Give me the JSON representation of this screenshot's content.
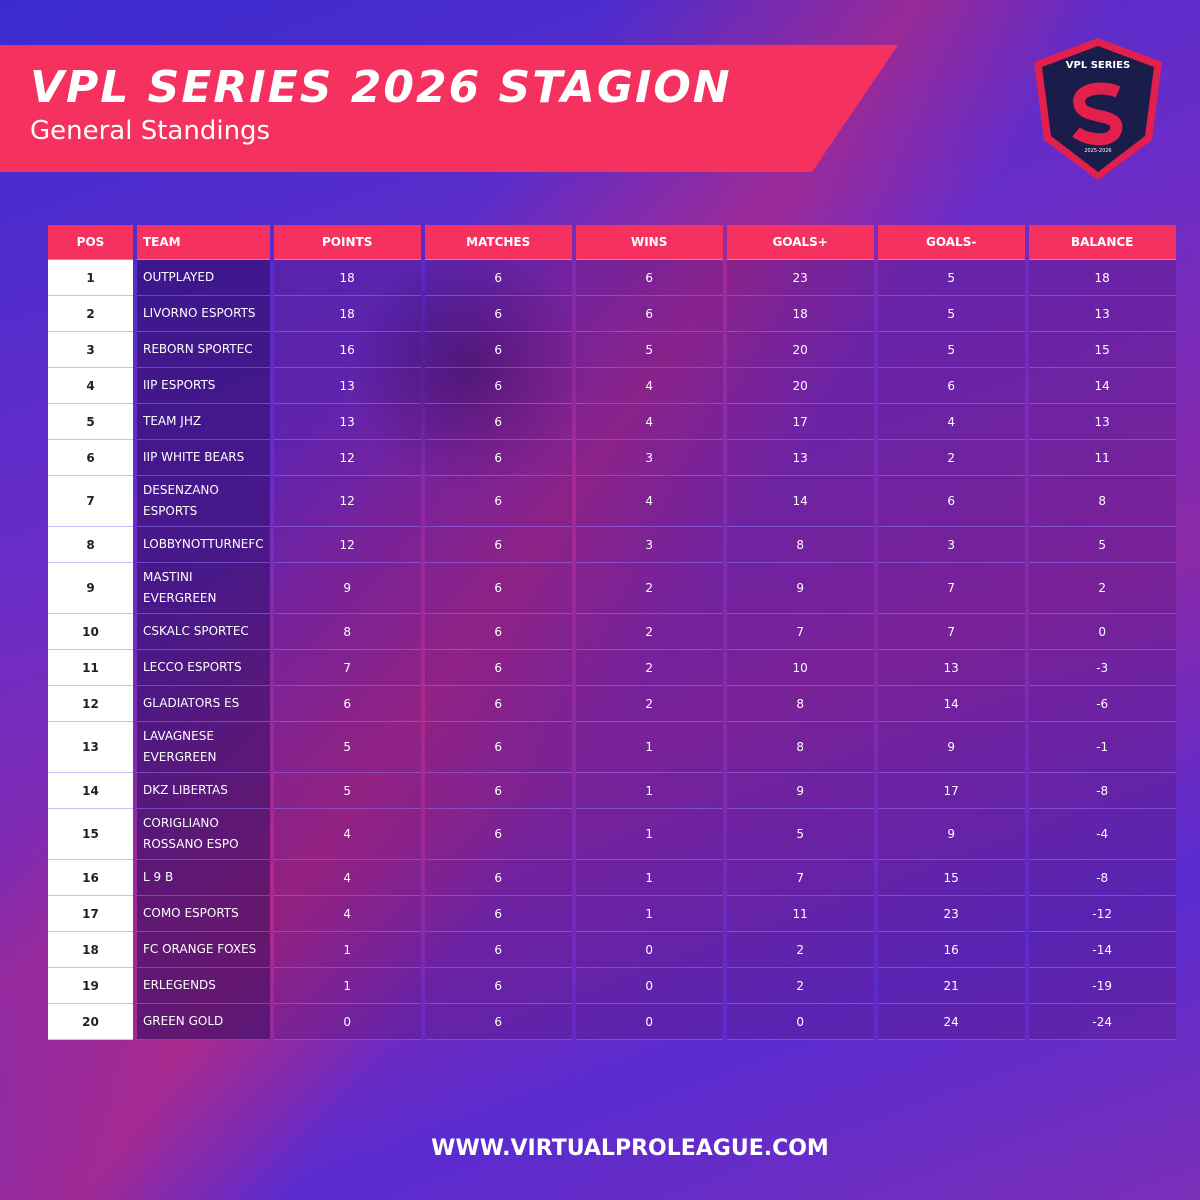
{
  "header": {
    "title": "VPL SERIES 2026 STAGION",
    "subtitle": "General Standings"
  },
  "logo": {
    "name": "VPL SERIES",
    "season": "2025-2026"
  },
  "table": {
    "columns": [
      "POS",
      "TEAM",
      "POINTS",
      "MATCHES",
      "WINS",
      "GOALS+",
      "GOALS-",
      "BALANCE"
    ],
    "rows": [
      [
        1,
        "OUTPLAYED",
        18,
        6,
        6,
        23,
        5,
        18
      ],
      [
        2,
        "LIVORNO ESPORTS",
        18,
        6,
        6,
        18,
        5,
        13
      ],
      [
        3,
        "REBORN SPORTEC",
        16,
        6,
        5,
        20,
        5,
        15
      ],
      [
        4,
        "IIP ESPORTS",
        13,
        6,
        4,
        20,
        6,
        14
      ],
      [
        5,
        "TEAM JHZ",
        13,
        6,
        4,
        17,
        4,
        13
      ],
      [
        6,
        "IIP WHITE BEARS",
        12,
        6,
        3,
        13,
        2,
        11
      ],
      [
        7,
        "DESENZANO ESPORTS",
        12,
        6,
        4,
        14,
        6,
        8
      ],
      [
        8,
        "LOBBYNOTTURNEFC",
        12,
        6,
        3,
        8,
        3,
        5
      ],
      [
        9,
        "MASTINI EVERGREEN",
        9,
        6,
        2,
        9,
        7,
        2
      ],
      [
        10,
        "CSKALC SPORTEC",
        8,
        6,
        2,
        7,
        7,
        0
      ],
      [
        11,
        "LECCO ESPORTS",
        7,
        6,
        2,
        10,
        13,
        -3
      ],
      [
        12,
        "GLADIATORS ES",
        6,
        6,
        2,
        8,
        14,
        -6
      ],
      [
        13,
        "LAVAGNESE EVERGREEN",
        5,
        6,
        1,
        8,
        9,
        -1
      ],
      [
        14,
        "DKZ LIBERTAS",
        5,
        6,
        1,
        9,
        17,
        -8
      ],
      [
        15,
        "CORIGLIANO ROSSANO ESPO",
        4,
        6,
        1,
        5,
        9,
        -4
      ],
      [
        16,
        "L 9 B",
        4,
        6,
        1,
        7,
        15,
        -8
      ],
      [
        17,
        "COMO ESPORTS",
        4,
        6,
        1,
        11,
        23,
        -12
      ],
      [
        18,
        "FC ORANGE FOXES",
        1,
        6,
        0,
        2,
        16,
        -14
      ],
      [
        19,
        "ERLEGENDS",
        1,
        6,
        0,
        2,
        21,
        -19
      ],
      [
        20,
        "GREEN GOLD",
        0,
        6,
        0,
        0,
        24,
        -24
      ]
    ]
  },
  "footer": {
    "url": "WWW.VIRTUALPROLEAGUE.COM"
  }
}
